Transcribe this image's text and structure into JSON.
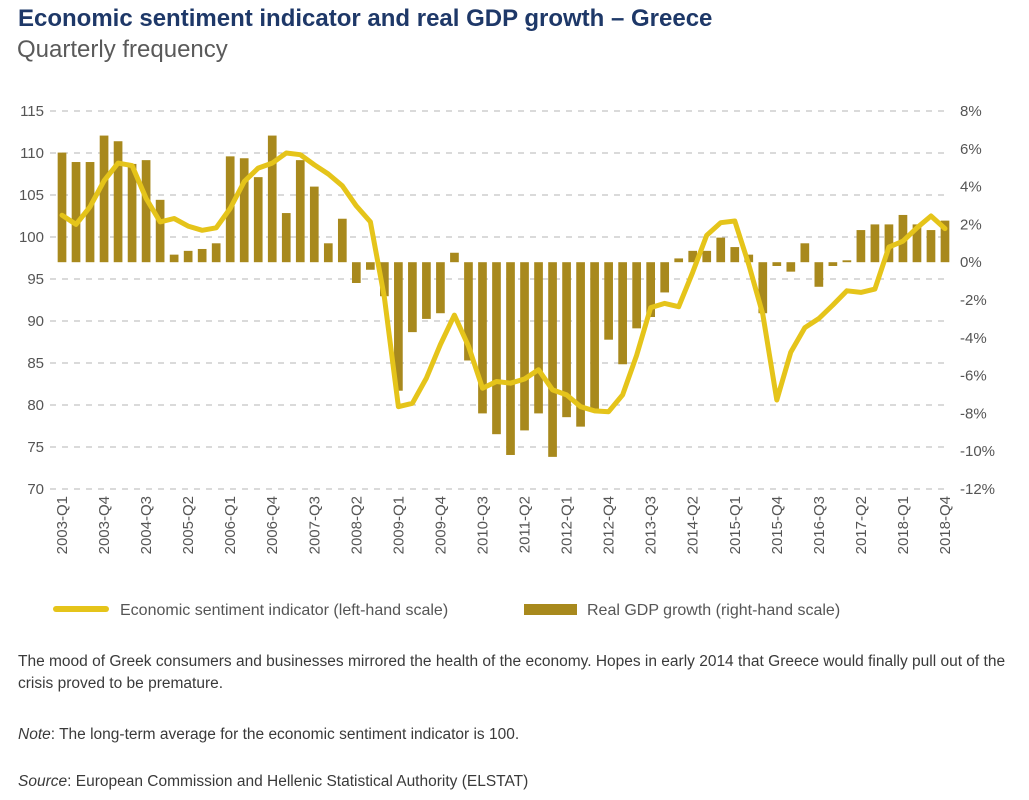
{
  "header": {
    "title": "Economic sentiment indicator and real GDP growth – Greece",
    "subtitle": "Quarterly frequency"
  },
  "colors": {
    "title": "#1e3868",
    "line": "#e5c41a",
    "bars": "#a8891d",
    "grid": "#b4b4b4"
  },
  "chart_data": {
    "type": "bar",
    "combo": "bar+line, dual axis",
    "title": "Economic sentiment indicator and real GDP growth – Greece",
    "subtitle": "Quarterly frequency",
    "x": [
      "2003-Q1",
      "2003-Q2",
      "2003-Q3",
      "2003-Q4",
      "2004-Q1",
      "2004-Q2",
      "2004-Q3",
      "2004-Q4",
      "2005-Q1",
      "2005-Q2",
      "2005-Q3",
      "2005-Q4",
      "2006-Q1",
      "2006-Q2",
      "2006-Q3",
      "2006-Q4",
      "2007-Q1",
      "2007-Q2",
      "2007-Q3",
      "2007-Q4",
      "2008-Q1",
      "2008-Q2",
      "2008-Q3",
      "2008-Q4",
      "2009-Q1",
      "2009-Q2",
      "2009-Q3",
      "2009-Q4",
      "2010-Q1",
      "2010-Q2",
      "2010-Q3",
      "2010-Q4",
      "2011-Q1",
      "2011-Q2",
      "2011-Q3",
      "2011-Q4",
      "2012-Q1",
      "2012-Q2",
      "2012-Q3",
      "2012-Q4",
      "2013-Q1",
      "2013-Q2",
      "2013-Q3",
      "2013-Q4",
      "2014-Q1",
      "2014-Q2",
      "2014-Q3",
      "2014-Q4",
      "2015-Q1",
      "2015-Q2",
      "2015-Q3",
      "2015-Q4",
      "2016-Q1",
      "2016-Q2",
      "2016-Q3",
      "2016-Q4",
      "2017-Q1",
      "2017-Q2",
      "2017-Q3",
      "2017-Q4",
      "2018-Q1",
      "2018-Q2",
      "2018-Q3",
      "2018-Q4"
    ],
    "xtick_labels": [
      "2003-Q1",
      "2003-Q4",
      "2004-Q3",
      "2005-Q2",
      "2006-Q1",
      "2006-Q4",
      "2007-Q3",
      "2008-Q2",
      "2009-Q1",
      "2009-Q4",
      "2010-Q3",
      "2011-Q2",
      "2012-Q1",
      "2012-Q4",
      "2013-Q3",
      "2014-Q2",
      "2015-Q1",
      "2015-Q4",
      "2016-Q3",
      "2017-Q2",
      "2018-Q1",
      "2018-Q4"
    ],
    "series": [
      {
        "name": "Economic sentiment indicator (left-hand scale)",
        "type": "line",
        "axis": "left",
        "color": "#e5c41a",
        "values": [
          102.6,
          101.5,
          103.6,
          106.7,
          108.8,
          108.5,
          104.6,
          101.8,
          102.2,
          101.3,
          100.8,
          101.1,
          103.4,
          106.6,
          108.2,
          108.8,
          110.0,
          109.8,
          108.6,
          107.5,
          106.1,
          103.7,
          101.8,
          92.8,
          79.8,
          80.2,
          83.2,
          87.2,
          90.7,
          87.0,
          82.0,
          82.8,
          82.6,
          83.1,
          84.2,
          81.8,
          81.2,
          79.8,
          79.3,
          79.2,
          81.2,
          85.9,
          91.6,
          92.1,
          91.7,
          95.8,
          100.2,
          101.7,
          101.9,
          96.7,
          90.8,
          80.6,
          86.3,
          89.2,
          90.3,
          91.9,
          93.6,
          93.4,
          93.8,
          98.8,
          99.5,
          101.1,
          102.5,
          101.0
        ]
      },
      {
        "name": "Real GDP growth (right-hand scale)",
        "type": "bar",
        "axis": "right",
        "color": "#a8891d",
        "values": [
          5.8,
          5.3,
          5.3,
          6.7,
          6.4,
          5.2,
          5.4,
          3.3,
          0.4,
          0.6,
          0.7,
          1.0,
          5.6,
          5.5,
          4.5,
          6.7,
          2.6,
          5.4,
          4.0,
          1.0,
          2.3,
          -1.1,
          -0.4,
          -1.8,
          -6.8,
          -3.7,
          -3.0,
          -2.7,
          0.5,
          -5.2,
          -8.0,
          -9.1,
          -10.2,
          -8.9,
          -8.0,
          -10.3,
          -8.2,
          -8.7,
          -7.9,
          -4.1,
          -5.4,
          -3.5,
          -2.9,
          -1.6,
          0.2,
          0.6,
          0.6,
          1.3,
          0.8,
          0.4,
          -2.7,
          -0.2,
          -0.5,
          1.0,
          -1.3,
          -0.2,
          0.1,
          1.7,
          2.0,
          2.0,
          2.5,
          2.0,
          1.7,
          2.2
        ]
      }
    ],
    "y_left": {
      "ylim": [
        70,
        115
      ],
      "ticks": [
        "115",
        "110",
        "105",
        "100",
        "95",
        "90",
        "85",
        "80",
        "75",
        "70"
      ]
    },
    "y_right": {
      "ylim": [
        -12,
        8
      ],
      "ticks": [
        "8%",
        "6%",
        "4%",
        "2%",
        "0%",
        "-2%",
        "-4%",
        "-6%",
        "-8%",
        "-10%",
        "-12%"
      ]
    },
    "grid": "horizontal dashed",
    "legend_position": "bottom"
  },
  "legend": {
    "line_label": "Economic sentiment indicator (left-hand scale)",
    "bar_label": "Real GDP growth (right-hand scale)"
  },
  "caption": {
    "body": "The mood of Greek consumers and businesses mirrored the health of the economy. Hopes in early 2014 that Greece would finally pull out of the crisis proved to be premature.",
    "note_label": "Note",
    "note_text": ": The long-term average for the economic sentiment indicator is 100.",
    "source_label": "Source",
    "source_text": ": European Commission and Hellenic Statistical Authority (ELSTAT)"
  }
}
